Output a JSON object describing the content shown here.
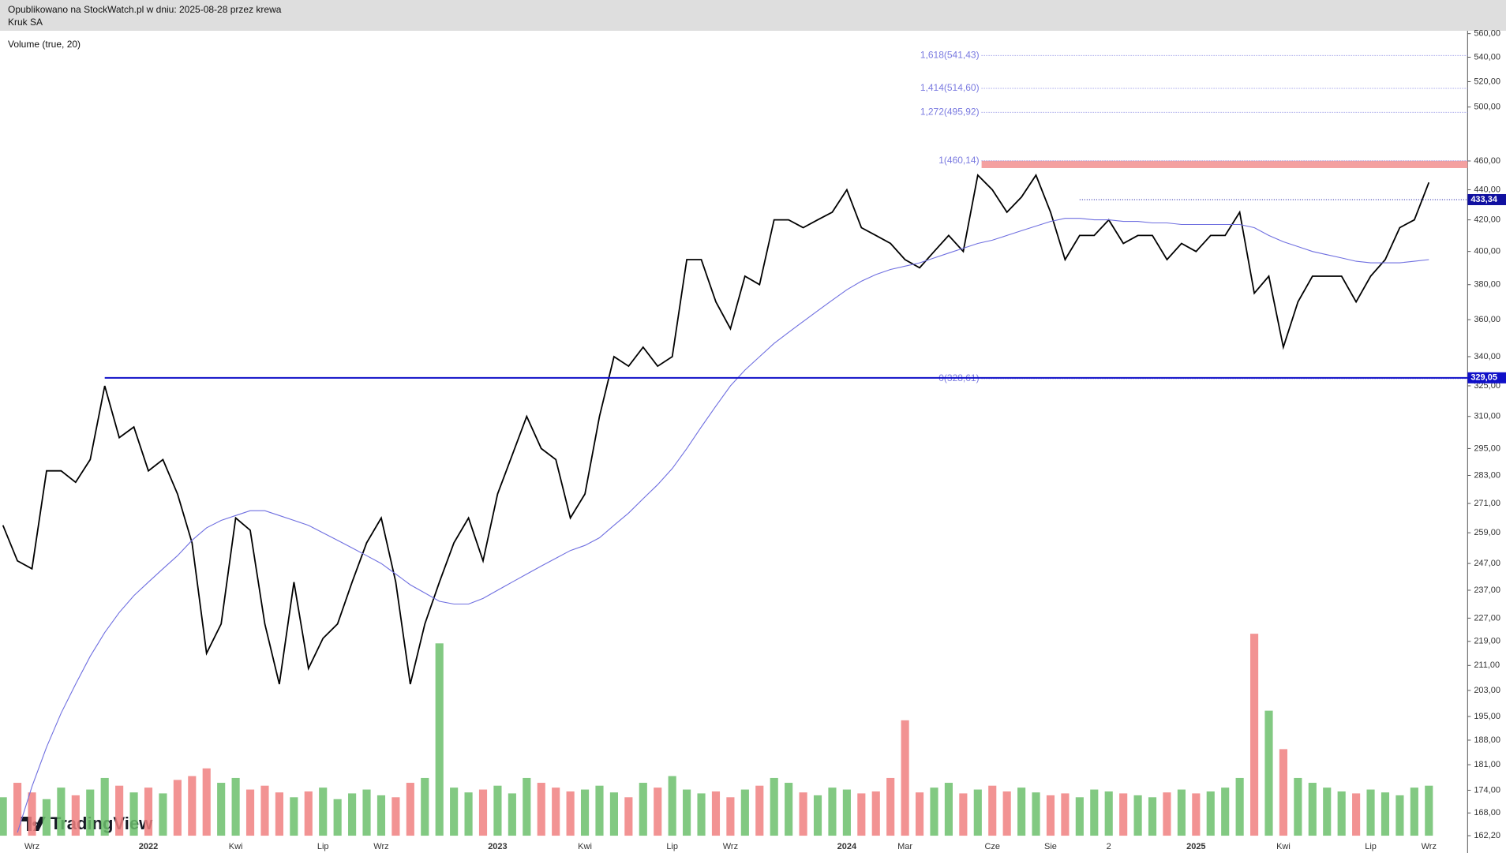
{
  "header": {
    "publisher": "Opublikowano na StockWatch.pl w dniu: 2025-08-28 przez krewa",
    "symbol": "Kruk SA",
    "logo": "TradingView"
  },
  "chart_data": {
    "type": "line",
    "indicator": "Volume (true, 20)",
    "log_scale": true,
    "categories": [
      null,
      null,
      "Wrz",
      null,
      null,
      null,
      null,
      null,
      null,
      null,
      "2022",
      null,
      null,
      null,
      null,
      null,
      "Kwi",
      null,
      null,
      null,
      null,
      null,
      "Lip",
      null,
      null,
      null,
      "Wrz",
      null,
      null,
      null,
      null,
      null,
      null,
      null,
      "2023",
      null,
      null,
      null,
      null,
      null,
      "Kwi",
      null,
      null,
      null,
      null,
      null,
      "Lip",
      null,
      null,
      null,
      "Wrz",
      null,
      null,
      null,
      null,
      null,
      null,
      null,
      "2024",
      null,
      null,
      null,
      "Mar",
      null,
      null,
      null,
      null,
      null,
      "Cze",
      null,
      null,
      null,
      "Sie",
      null,
      null,
      null,
      "2",
      null,
      null,
      null,
      null,
      null,
      "2025",
      null,
      null,
      null,
      null,
      null,
      "Kwi",
      null,
      null,
      null,
      null,
      null,
      "Lip",
      null,
      null,
      null,
      "Wrz"
    ],
    "series": [
      {
        "color": "#000000",
        "values": [
          262,
          248,
          245,
          285,
          285,
          280,
          290,
          325,
          300,
          305,
          285,
          290,
          275,
          255,
          215,
          225,
          265,
          260,
          225,
          205,
          240,
          210,
          220,
          225,
          240,
          255,
          265,
          240,
          205,
          225,
          240,
          255,
          265,
          248,
          275,
          292,
          310,
          295,
          290,
          265,
          275,
          310,
          340,
          335,
          345,
          335,
          340,
          395,
          395,
          370,
          355,
          385,
          380,
          420,
          420,
          415,
          420,
          425,
          440,
          415,
          410,
          405,
          395,
          390,
          400,
          410,
          400,
          450,
          440,
          425,
          435,
          450,
          425,
          395,
          410,
          410,
          420,
          405,
          410,
          410,
          395,
          405,
          400,
          410,
          410,
          425,
          375,
          385,
          345,
          370,
          385,
          385,
          385,
          370,
          385,
          395,
          415,
          420,
          445
        ]
      },
      {
        "color": "#6f6fe0",
        "values": [
          null,
          163,
          175,
          186,
          196,
          205,
          214,
          222,
          229,
          235,
          240,
          245,
          250,
          256,
          261,
          264,
          266,
          268,
          268,
          266,
          264,
          262,
          259,
          256,
          253,
          250,
          247,
          243,
          239,
          236,
          233,
          232,
          232,
          234,
          237,
          240,
          243,
          246,
          249,
          252,
          254,
          257,
          262,
          267,
          273,
          279,
          286,
          295,
          305,
          315,
          325,
          333,
          340,
          347,
          353,
          359,
          365,
          371,
          377,
          382,
          386,
          389,
          391,
          393,
          396,
          399,
          402,
          405,
          407,
          410,
          413,
          416,
          419,
          421,
          421,
          420,
          420,
          419,
          419,
          418,
          418,
          417,
          417,
          417,
          417,
          417,
          415,
          410,
          406,
          403,
          400,
          398,
          396,
          394,
          393,
          393,
          393,
          394,
          395
        ]
      }
    ],
    "volume": {
      "values": [
        40,
        55,
        45,
        38,
        50,
        42,
        48,
        60,
        52,
        45,
        50,
        44,
        58,
        62,
        70,
        55,
        60,
        48,
        52,
        45,
        40,
        46,
        50,
        38,
        44,
        48,
        42,
        40,
        55,
        60,
        200,
        50,
        45,
        48,
        52,
        44,
        60,
        55,
        50,
        46,
        48,
        52,
        45,
        40,
        55,
        50,
        62,
        48,
        44,
        46,
        40,
        48,
        52,
        60,
        55,
        45,
        42,
        50,
        48,
        44,
        46,
        60,
        120,
        45,
        50,
        55,
        44,
        48,
        52,
        46,
        50,
        45,
        42,
        44,
        40,
        48,
        46,
        44,
        42,
        40,
        45,
        48,
        44,
        46,
        50,
        60,
        210,
        130,
        90,
        60,
        55,
        50,
        46,
        44,
        48,
        45,
        42,
        50,
        52
      ],
      "ylim": [
        0,
        250
      ],
      "up_color": "#6cbf6c",
      "down_color": "#f08080"
    },
    "ylim": [
      162.2,
      560
    ],
    "yticks": [
      {
        "value": 560,
        "label": "560,00"
      },
      {
        "value": 540,
        "label": "540,00"
      },
      {
        "value": 520,
        "label": "520,00"
      },
      {
        "value": 500,
        "label": "500,00"
      },
      {
        "value": 460,
        "label": "460,00"
      },
      {
        "value": 440,
        "label": "440,00"
      },
      {
        "value": 420,
        "label": "420,00"
      },
      {
        "value": 400,
        "label": "400,00"
      },
      {
        "value": 380,
        "label": "380,00"
      },
      {
        "value": 360,
        "label": "360,00"
      },
      {
        "value": 340,
        "label": "340,00"
      },
      {
        "value": 325,
        "label": "325,00"
      },
      {
        "value": 310,
        "label": "310,00"
      },
      {
        "value": 295,
        "label": "295,00"
      },
      {
        "value": 283,
        "label": "283,00"
      },
      {
        "value": 271,
        "label": "271,00"
      },
      {
        "value": 259,
        "label": "259,00"
      },
      {
        "value": 247,
        "label": "247,00"
      },
      {
        "value": 237,
        "label": "237,00"
      },
      {
        "value": 227,
        "label": "227,00"
      },
      {
        "value": 219,
        "label": "219,00"
      },
      {
        "value": 211,
        "label": "211,00"
      },
      {
        "value": 203,
        "label": "203,00"
      },
      {
        "value": 195,
        "label": "195,00"
      },
      {
        "value": 188,
        "label": "188,00"
      },
      {
        "value": 181,
        "label": "181,00"
      },
      {
        "value": 174,
        "label": "174,00"
      },
      {
        "value": 168,
        "label": "168,00"
      },
      {
        "value": 162.2,
        "label": "162,20"
      }
    ],
    "fib_levels": [
      {
        "value": 541.43,
        "label": "1,618(541,43)"
      },
      {
        "value": 514.6,
        "label": "1,414(514,60)"
      },
      {
        "value": 495.92,
        "label": "1,272(495,92)"
      },
      {
        "value": 460.14,
        "label": "1(460,14)"
      },
      {
        "value": 328.61,
        "label": "0(328,61)"
      }
    ],
    "fib_color": "#7a7ae0",
    "zone": {
      "ylim": [
        455,
        460.14
      ],
      "color": "#f4a0a0"
    },
    "hlines": [
      {
        "value": 329.05,
        "label": "329,05",
        "color": "#1010c8",
        "style": "solid",
        "start": 7
      },
      {
        "value": 433.34,
        "label": "433,34",
        "color": "#1010a0",
        "style": "dotted",
        "start": 74
      }
    ]
  }
}
